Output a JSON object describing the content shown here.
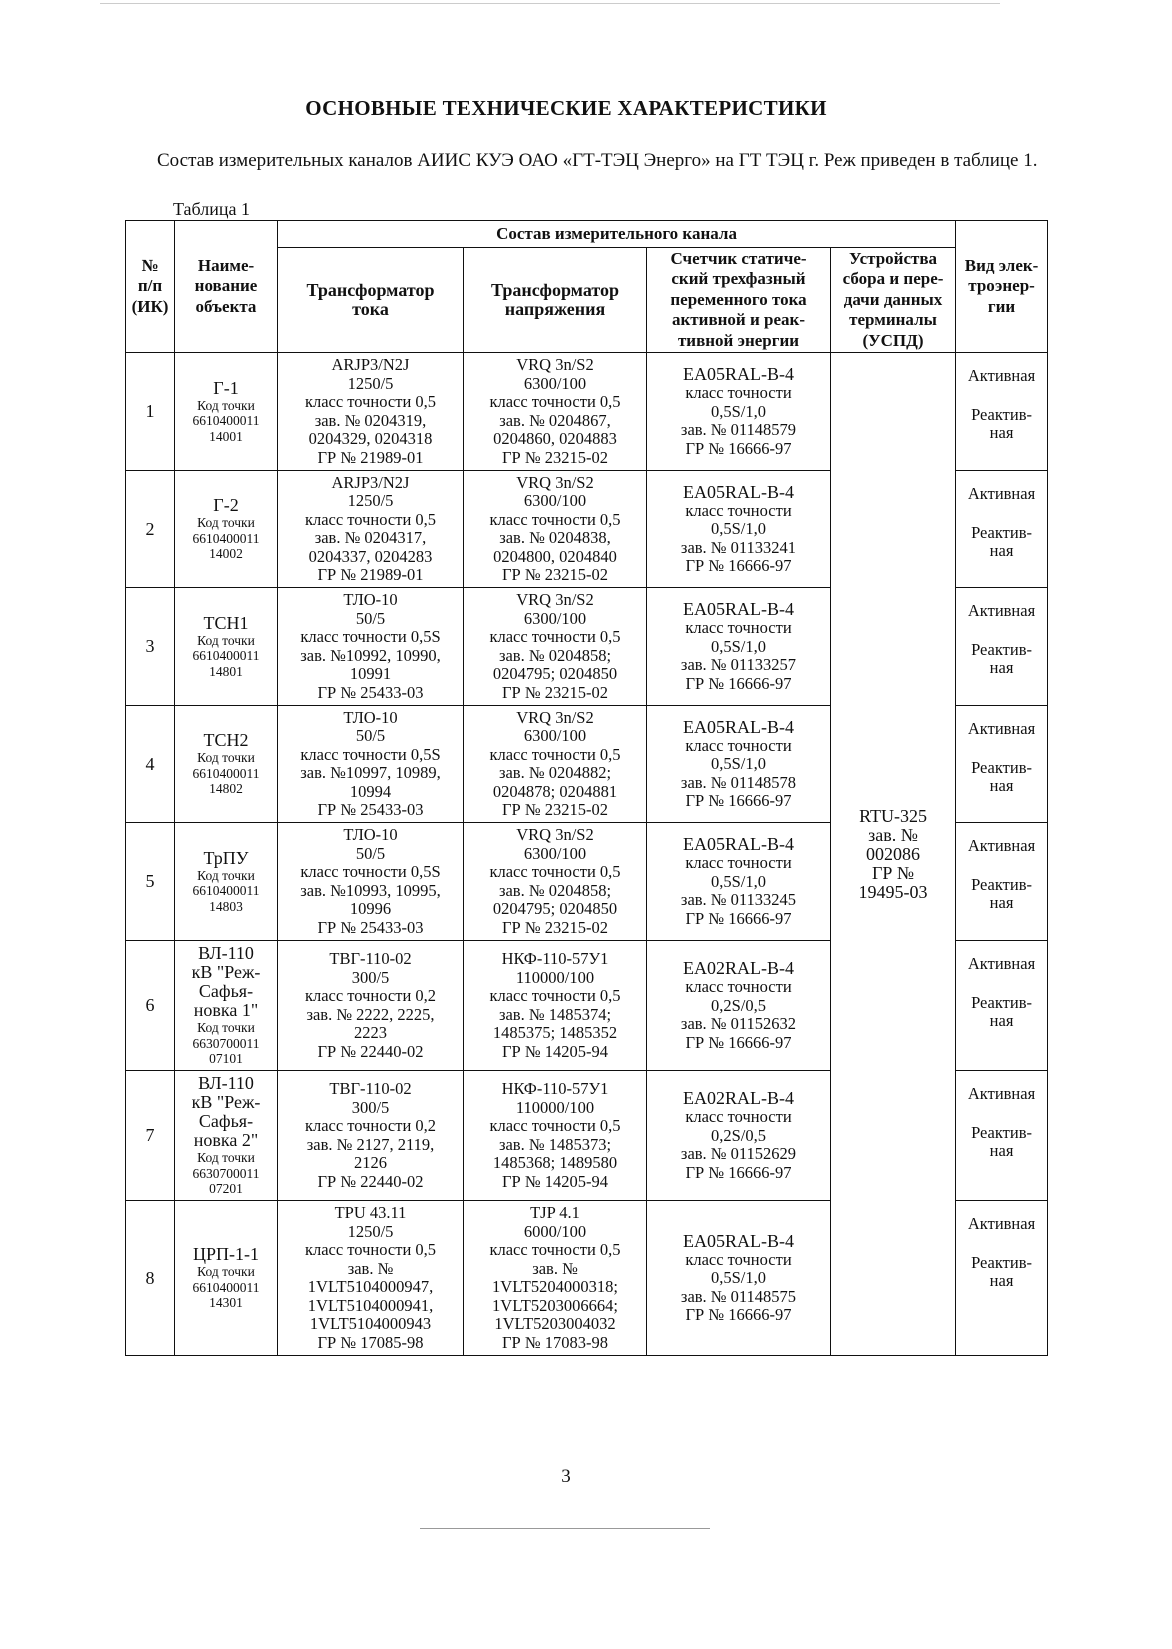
{
  "title": "ОСНОВНЫЕ ТЕХНИЧЕСКИЕ ХАРАКТЕРИСТИКИ",
  "intro": "Состав измерительных каналов АИИС КУЭ ОАО «ГТ-ТЭЦ Энерго» на ГТ ТЭЦ г. Реж приведен в таблице 1.",
  "caption": "Таблица 1",
  "headers": {
    "num": "№\nп/п\n(ИК)",
    "name": "Наиме-\nнование\nобъекта",
    "group": "Состав измерительного канала",
    "ct": "Трансформатор\nтока",
    "vt": "Трансформатор\nнапряжения",
    "meter": "Счетчик статиче-\nский трехфазный\nпеременного тока\nактивной и реак-\nтивной энергии",
    "uspd": "Устройства\nсбора и пере-\nдачи данных\nтерминалы\n(УСПД)",
    "kind": "Вид элек-\nтроэнер-\nгии"
  },
  "uspd": "RTU-325\nзав. №\n002086\nГР №\n19495-03",
  "rows": [
    {
      "num": "1",
      "name": "Г-1",
      "code": "Код точки\n6610400011\n14001",
      "ct": "ARJP3/N2J\n1250/5\nкласс точности 0,5\nзав. № 0204319,\n0204329, 0204318\nГР № 21989-01",
      "vt": "VRQ 3n/S2\n6300/100\nкласс точности 0,5\nзав. № 0204867,\n0204860, 0204883\nГР № 23215-02",
      "meter_model": "EA05RAL-B-4",
      "meter": "класс точности\n0,5S/1,0\nзав. № 01148579\nГР № 16666-97",
      "active": "Активная",
      "reactive": "Реактив-\nная"
    },
    {
      "num": "2",
      "name": "Г-2",
      "code": "Код точки\n6610400011\n14002",
      "ct": "ARJP3/N2J\n1250/5\nкласс точности 0,5\nзав. № 0204317,\n0204337, 0204283\nГР № 21989-01",
      "vt": "VRQ 3n/S2\n6300/100\nкласс точности 0,5\nзав. № 0204838,\n0204800, 0204840\nГР № 23215-02",
      "meter_model": "EA05RAL-B-4",
      "meter": "класс точности\n0,5S/1,0\nзав. № 01133241\nГР № 16666-97",
      "active": "Активная",
      "reactive": "Реактив-\nная"
    },
    {
      "num": "3",
      "name": "ТСН1",
      "code": "Код точки\n6610400011\n14801",
      "ct": "ТЛО-10\n50/5\nкласс точности 0,5S\nзав. №10992, 10990,\n10991\nГР № 25433-03",
      "vt": "VRQ 3n/S2\n6300/100\nкласс точности 0,5\nзав. № 0204858;\n0204795; 0204850\nГР № 23215-02",
      "meter_model": "EA05RAL-B-4",
      "meter": "класс точности\n0,5S/1,0\nзав. № 01133257\nГР № 16666-97",
      "active": "Активная",
      "reactive": "Реактив-\nная"
    },
    {
      "num": "4",
      "name": "ТСН2",
      "code": "Код точки\n6610400011\n14802",
      "ct": "ТЛО-10\n50/5\nкласс точности 0,5S\nзав. №10997, 10989,\n10994\nГР № 25433-03",
      "vt": "VRQ 3n/S2\n6300/100\nкласс точности 0,5\nзав. № 0204882;\n0204878; 0204881\nГР № 23215-02",
      "meter_model": "EA05RAL-B-4",
      "meter": "класс точности\n0,5S/1,0\nзав. № 01148578\nГР № 16666-97",
      "active": "Активная",
      "reactive": "Реактив-\nная"
    },
    {
      "num": "5",
      "name": "ТрПУ",
      "code": "Код точки\n6610400011\n14803",
      "ct": "ТЛО-10\n50/5\nкласс точности 0,5S\nзав. №10993, 10995,\n10996\nГР № 25433-03",
      "vt": "VRQ 3n/S2\n6300/100\nкласс точности 0,5\nзав. № 0204858;\n0204795; 0204850\nГР № 23215-02",
      "meter_model": "EA05RAL-B-4",
      "meter": "класс точности\n0,5S/1,0\nзав. № 01133245\nГР № 16666-97",
      "active": "Активная",
      "reactive": "Реактив-\nная"
    },
    {
      "num": "6",
      "name": "ВЛ-110\nкВ \"Реж-\nСафья-\nновка 1\"",
      "code": "Код точки\n6630700011\n07101",
      "ct": "ТВГ-110-02\n300/5\nкласс точности 0,2\nзав. № 2222, 2225,\n2223\nГР № 22440-02",
      "vt": "НКФ-110-57У1\n110000/100\nкласс точности 0,5\nзав. № 1485374;\n1485375; 1485352\nГР № 14205-94",
      "meter_model": "EA02RAL-B-4",
      "meter": "класс точности\n0,2S/0,5\nзав. № 01152632\nГР № 16666-97",
      "active": "Активная",
      "reactive": "Реактив-\nная"
    },
    {
      "num": "7",
      "name": "ВЛ-110\nкВ \"Реж-\nСафья-\nновка 2\"",
      "code": "Код точки\n6630700011\n07201",
      "ct": "ТВГ-110-02\n300/5\nкласс точности 0,2\nзав. № 2127, 2119,\n2126\nГР № 22440-02",
      "vt": "НКФ-110-57У1\n110000/100\nкласс точности 0,5\nзав. № 1485373;\n1485368; 1489580\nГР № 14205-94",
      "meter_model": "EA02RAL-B-4",
      "meter": "класс точности\n0,2S/0,5\nзав. № 01152629\nГР № 16666-97",
      "active": "Активная",
      "reactive": "Реактив-\nная"
    },
    {
      "num": "8",
      "name": "ЦРП-1-1",
      "code": "Код точки\n6610400011\n14301",
      "ct": "TPU 43.11\n1250/5\nкласс точности 0,5\nзав. №\n1VLT5104000947,\n1VLT5104000941,\n1VLT5104000943\nГР № 17085-98",
      "vt": "TJP 4.1\n6000/100\nкласс точности 0,5\nзав. №\n1VLT5204000318;\n1VLT5203006664;\n1VLT5203004032\nГР № 17083-98",
      "meter_model": "EA05RAL-B-4",
      "meter": "класс точности\n0,5S/1,0\nзав. № 01148575\nГР № 16666-97",
      "active": "Активная",
      "reactive": "Реактив-\nная"
    }
  ],
  "page_number": "3"
}
